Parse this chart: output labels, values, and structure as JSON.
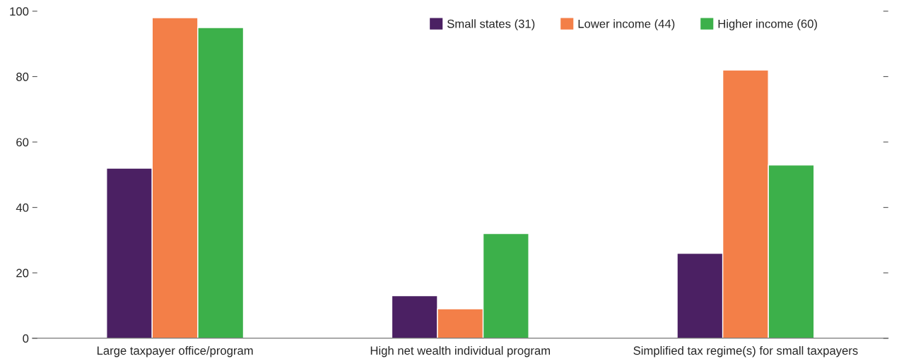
{
  "chart_data": {
    "type": "bar",
    "categories": [
      "Large taxpayer office/program",
      "High net wealth individual program",
      "Simplified tax regime(s) for small taxpayers"
    ],
    "series": [
      {
        "name": "Small states (31)",
        "color": "#4b2063",
        "values": [
          52,
          13,
          26
        ]
      },
      {
        "name": "Lower income (44)",
        "color": "#f37f48",
        "values": [
          98,
          9,
          82
        ]
      },
      {
        "name": "Higher income (60)",
        "color": "#3cb04a",
        "values": [
          95,
          32,
          53
        ]
      }
    ],
    "ylim": [
      0,
      100
    ],
    "yticks": [
      0,
      20,
      40,
      60,
      80,
      100
    ],
    "grid": false,
    "legend": "top right"
  }
}
